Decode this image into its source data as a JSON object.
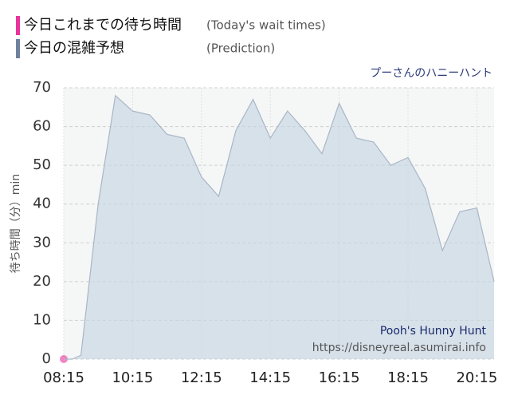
{
  "chart_data": {
    "type": "area",
    "attraction": "プーさんのハニーハント",
    "y_label": "待ち時間（分）min",
    "watermark": [
      "Pooh's Hunny Hunt",
      "https://disneyreal.asumirai.info"
    ],
    "xlim": [
      "08:15",
      "20:45"
    ],
    "xticks": [
      "08:15",
      "10:15",
      "12:15",
      "14:15",
      "16:15",
      "18:15",
      "20:15"
    ],
    "ylim": [
      0,
      70
    ],
    "yticks": [
      0,
      10,
      20,
      30,
      40,
      50,
      60,
      70
    ],
    "grid": true,
    "series": [
      {
        "name": "今日これまでの待ち時間",
        "note": "(Today's wait times)",
        "color": "#e8349b",
        "style": "points",
        "x": [
          "08:15"
        ],
        "values": [
          0
        ]
      },
      {
        "name": "今日の混雑予想",
        "note": "(Prediction)",
        "color": "#6f819f",
        "style": "area",
        "x": [
          "08:15",
          "08:30",
          "08:45",
          "09:15",
          "09:45",
          "10:15",
          "10:45",
          "11:15",
          "11:45",
          "12:15",
          "12:45",
          "13:15",
          "13:45",
          "14:15",
          "14:45",
          "15:15",
          "15:45",
          "16:15",
          "16:45",
          "17:15",
          "17:45",
          "18:15",
          "18:45",
          "19:15",
          "19:45",
          "20:15",
          "20:45"
        ],
        "values": [
          0,
          0,
          1,
          40,
          68,
          64,
          63,
          58,
          57,
          47,
          42,
          59,
          67,
          57,
          64,
          59,
          53,
          66,
          57,
          56,
          50,
          52,
          44,
          28,
          38,
          39,
          20
        ]
      }
    ]
  }
}
